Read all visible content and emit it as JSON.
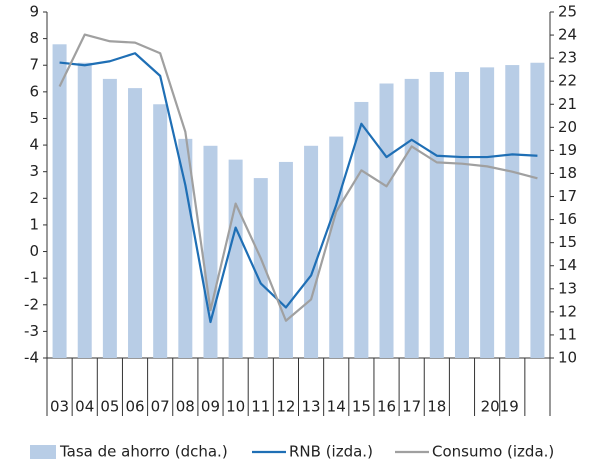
{
  "chart_data": {
    "type": "bar-line",
    "categories": [
      "03",
      "04",
      "05",
      "06",
      "07",
      "08",
      "09",
      "10",
      "11",
      "12",
      "13",
      "14",
      "15",
      "16",
      "17",
      "18",
      null,
      null,
      null,
      null
    ],
    "group_label": "2019",
    "series": [
      {
        "name": "Tasa de ahorro (dcha.)",
        "type": "bar",
        "axis": "y2",
        "color": "#b8cde6",
        "values": [
          23.6,
          22.8,
          22.1,
          21.7,
          21.0,
          19.5,
          19.2,
          18.6,
          17.8,
          18.5,
          19.2,
          19.6,
          21.1,
          21.9,
          22.1,
          22.4,
          22.4,
          22.6,
          22.7,
          22.8
        ]
      },
      {
        "name": "RNB (izda.)",
        "type": "line",
        "color": "#1f6fb5",
        "values": [
          7.1,
          7.0,
          7.15,
          7.45,
          6.6,
          2.5,
          -2.65,
          0.9,
          -1.2,
          -2.1,
          -0.9,
          1.75,
          4.8,
          3.55,
          4.2,
          3.6,
          3.55,
          3.55,
          3.65,
          3.6
        ]
      },
      {
        "name": "Consumo (izda.)",
        "type": "line",
        "color": "#a0a0a0",
        "values": [
          6.2,
          8.15,
          7.9,
          7.85,
          7.45,
          4.5,
          -2.2,
          1.8,
          -0.25,
          -2.6,
          -1.8,
          1.5,
          3.05,
          2.45,
          3.95,
          3.35,
          3.3,
          3.2,
          3.0,
          2.75
        ]
      }
    ],
    "ylim": [
      -4,
      9
    ],
    "yticks": [
      -4,
      -3,
      -2,
      -1,
      0,
      1,
      2,
      3,
      4,
      5,
      6,
      7,
      8,
      9
    ],
    "y2lim": [
      10,
      25
    ],
    "y2ticks": [
      10,
      11,
      12,
      13,
      14,
      15,
      16,
      17,
      18,
      19,
      20,
      21,
      22,
      23,
      24,
      25
    ],
    "legend": "bottom"
  }
}
